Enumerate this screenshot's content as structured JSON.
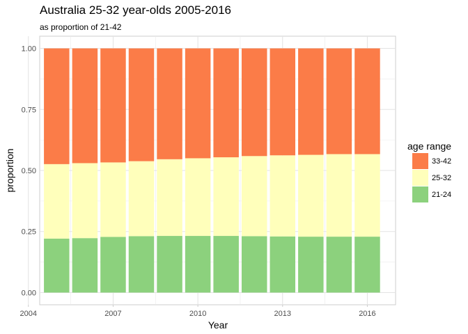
{
  "chart_data": {
    "type": "bar",
    "stacked": true,
    "title": "Australia 25-32 year-olds 2005-2016",
    "subtitle": "as proportion of 21-42",
    "xlabel": "Year",
    "ylabel": "proportion",
    "x": [
      2005,
      2006,
      2007,
      2008,
      2009,
      2010,
      2011,
      2012,
      2013,
      2014,
      2015,
      2016
    ],
    "xlim": [
      2004.4,
      2017.0
    ],
    "ylim": [
      -0.05,
      1.05
    ],
    "x_ticks": [
      "2004",
      "2007",
      "2010",
      "2013",
      "2016"
    ],
    "y_ticks": [
      "0.00",
      "0.25",
      "0.50",
      "0.75",
      "1.00"
    ],
    "grid": true,
    "legend_position": "right",
    "legend_title": "age range",
    "series": [
      {
        "name": "21-24",
        "color": "#8cd17d",
        "values": [
          0.221,
          0.223,
          0.228,
          0.231,
          0.232,
          0.232,
          0.232,
          0.231,
          0.23,
          0.229,
          0.229,
          0.229
        ]
      },
      {
        "name": "25-32",
        "color": "#ffffbb",
        "values": [
          0.305,
          0.307,
          0.305,
          0.307,
          0.314,
          0.318,
          0.322,
          0.328,
          0.332,
          0.335,
          0.338,
          0.338
        ]
      },
      {
        "name": "33-42",
        "color": "#fb7c48",
        "values": [
          0.474,
          0.47,
          0.467,
          0.462,
          0.454,
          0.45,
          0.446,
          0.441,
          0.438,
          0.436,
          0.433,
          0.433
        ]
      }
    ],
    "legend_order": [
      "33-42",
      "25-32",
      "21-24"
    ]
  }
}
